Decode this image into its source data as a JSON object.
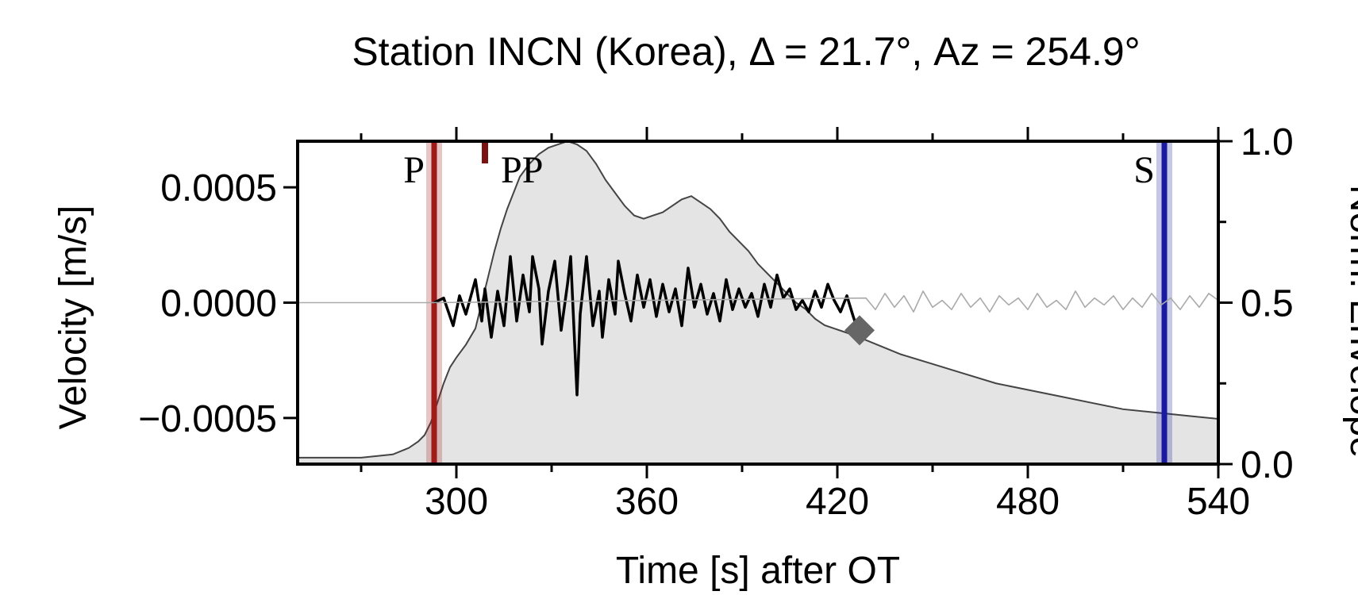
{
  "chart_data": {
    "type": "line",
    "title": "Station INCN (Korea),  Δ = 21.7°,  Az = 254.9°",
    "xlabel": "Time [s] after OT",
    "ylabel": "Velocity [m/s]",
    "y2label": "Norm. Envelope",
    "xlim": [
      250,
      540
    ],
    "ylim": [
      -0.0007,
      0.0007
    ],
    "y2lim": [
      0.0,
      1.0
    ],
    "x_ticks": [
      300,
      360,
      420,
      480,
      540
    ],
    "x_tick_labels": [
      "300",
      "360",
      "420",
      "480",
      "540"
    ],
    "y_ticks": [
      0.0005,
      0.0,
      -0.0005
    ],
    "y_tick_labels": [
      "0.0005",
      "0.0000",
      "−0.0005"
    ],
    "y2_ticks": [
      1.0,
      0.5,
      0.0
    ],
    "y2_tick_labels": [
      "1.0",
      "0.5",
      "0.0"
    ],
    "phases": [
      {
        "label": "P",
        "time": 293,
        "color": "#a01a1a"
      },
      {
        "label": "PP",
        "time": 309,
        "color": "#7a1212"
      },
      {
        "label": "S",
        "time": 523,
        "color": "#1a1aa0"
      }
    ],
    "end_marker": {
      "time": 427,
      "velocity": -0.00012
    },
    "series": [
      {
        "role": "envelope",
        "axis": "y2",
        "color": "#444444",
        "fill": "#e4e4e4",
        "x": [
          250,
          270,
          280,
          285,
          288,
          290,
          292,
          294,
          296,
          298,
          300,
          303,
          306,
          308,
          310,
          312,
          314,
          316,
          318,
          320,
          323,
          326,
          329,
          332,
          335,
          338,
          341,
          344,
          347,
          350,
          353,
          356,
          359,
          362,
          365,
          368,
          371,
          374,
          377,
          380,
          383,
          386,
          389,
          392,
          395,
          398,
          401,
          404,
          407,
          410,
          413,
          416,
          419,
          422,
          425,
          430,
          440,
          450,
          460,
          470,
          480,
          490,
          500,
          510,
          520,
          530,
          540
        ],
        "y": [
          0.02,
          0.02,
          0.03,
          0.05,
          0.07,
          0.09,
          0.13,
          0.19,
          0.25,
          0.3,
          0.33,
          0.37,
          0.42,
          0.5,
          0.58,
          0.66,
          0.73,
          0.79,
          0.84,
          0.89,
          0.93,
          0.96,
          0.98,
          0.99,
          1.0,
          0.99,
          0.97,
          0.93,
          0.88,
          0.84,
          0.8,
          0.77,
          0.76,
          0.77,
          0.78,
          0.8,
          0.82,
          0.83,
          0.81,
          0.79,
          0.76,
          0.72,
          0.69,
          0.66,
          0.62,
          0.59,
          0.56,
          0.53,
          0.5,
          0.48,
          0.45,
          0.43,
          0.42,
          0.41,
          0.4,
          0.38,
          0.34,
          0.31,
          0.28,
          0.25,
          0.23,
          0.21,
          0.19,
          0.17,
          0.16,
          0.15,
          0.14
        ]
      },
      {
        "role": "velocity-trace",
        "axis": "y",
        "color": "#000000",
        "x": [
          293,
          296,
          299,
          301,
          303,
          306,
          308,
          309,
          311,
          313,
          315,
          317,
          319,
          321,
          323,
          324,
          326,
          327,
          329,
          331,
          333,
          335,
          336,
          338,
          339,
          341,
          343,
          345,
          346,
          348,
          350,
          351,
          353,
          355,
          357,
          359,
          361,
          363,
          365,
          367,
          369,
          371,
          373,
          375,
          377,
          379,
          381,
          383,
          385,
          387,
          389,
          391,
          393,
          395,
          397,
          399,
          401,
          403,
          405,
          407,
          409,
          411,
          413,
          415,
          417,
          419,
          421,
          423,
          425,
          426,
          427
        ],
        "y": [
          0.0,
          2e-05,
          -0.0001,
          3e-05,
          -5e-05,
          0.0001,
          -8e-05,
          6e-05,
          -0.00015,
          5e-05,
          -0.0001,
          0.0002,
          -8e-05,
          0.00012,
          -4e-05,
          0.0002,
          6e-05,
          -0.00018,
          5e-05,
          0.00018,
          -0.00012,
          8e-05,
          0.0002,
          -0.0004,
          -5e-05,
          0.0002,
          -0.0001,
          5e-05,
          -0.00015,
          0.0001,
          -5e-05,
          0.00018,
          4e-05,
          -8e-05,
          0.00012,
          -2e-05,
          0.0001,
          -6e-05,
          8e-05,
          -4e-05,
          6e-05,
          -0.0001,
          0.00015,
          -2e-05,
          8e-05,
          -5e-05,
          4e-05,
          -8e-05,
          0.0001,
          -3e-05,
          6e-05,
          -2e-05,
          4e-05,
          -6e-05,
          8e-05,
          -2e-05,
          0.00012,
          2e-05,
          6e-05,
          -3e-05,
          1e-05,
          -4e-05,
          5e-05,
          -2e-05,
          8e-05,
          1e-05,
          -4e-05,
          3e-05,
          -6e-05,
          -0.0001,
          -0.00012
        ]
      },
      {
        "role": "velocity-trace-continued",
        "axis": "y",
        "color": "#aaaaaa",
        "x": [
          250,
          292,
          429,
          432,
          435,
          438,
          441,
          444,
          447,
          450,
          453,
          456,
          459,
          462,
          465,
          468,
          471,
          474,
          477,
          480,
          483,
          486,
          489,
          492,
          495,
          498,
          501,
          504,
          507,
          510,
          513,
          516,
          519,
          522,
          525,
          528,
          531,
          534,
          537,
          540
        ],
        "y": [
          0.0,
          0.0,
          2e-05,
          -3e-05,
          4e-05,
          -2e-05,
          3e-05,
          -4e-05,
          5e-05,
          -2e-05,
          1e-05,
          -3e-05,
          4e-05,
          -2e-05,
          2e-05,
          -4e-05,
          3e-05,
          -1e-05,
          2e-05,
          -3e-05,
          4e-05,
          -2e-05,
          1e-05,
          -3e-05,
          5e-05,
          -2e-05,
          2e-05,
          -1e-05,
          3e-05,
          -3e-05,
          2e-05,
          -2e-05,
          4e-05,
          -1e-05,
          2e-05,
          -3e-05,
          3e-05,
          -2e-05,
          4e-05,
          1e-05
        ]
      }
    ]
  }
}
